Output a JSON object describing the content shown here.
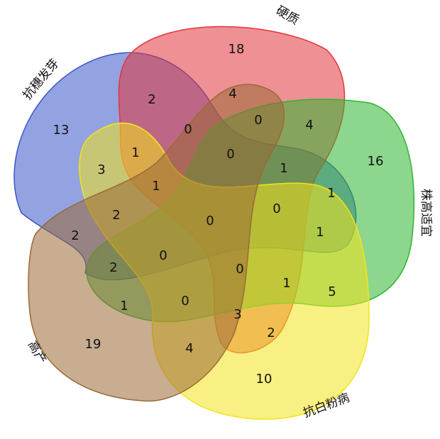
{
  "chart_data": {
    "type": "venn",
    "sets": [
      {
        "name": "抗穗发芽",
        "color": "#3a55c8"
      },
      {
        "name": "硬质",
        "color": "#e2353c"
      },
      {
        "name": "株高适宜",
        "color": "#2fb52f"
      },
      {
        "name": "抗白粉病",
        "color": "#f2e41c"
      },
      {
        "name": "高产",
        "color": "#9a6a36"
      }
    ],
    "regions": [
      18,
      2,
      4,
      0,
      4,
      13,
      0,
      1,
      0,
      16,
      3,
      1,
      1,
      1,
      0,
      2,
      0,
      1,
      2,
      0,
      2,
      0,
      1,
      5,
      1,
      0,
      3,
      2,
      19,
      4,
      10
    ]
  }
}
